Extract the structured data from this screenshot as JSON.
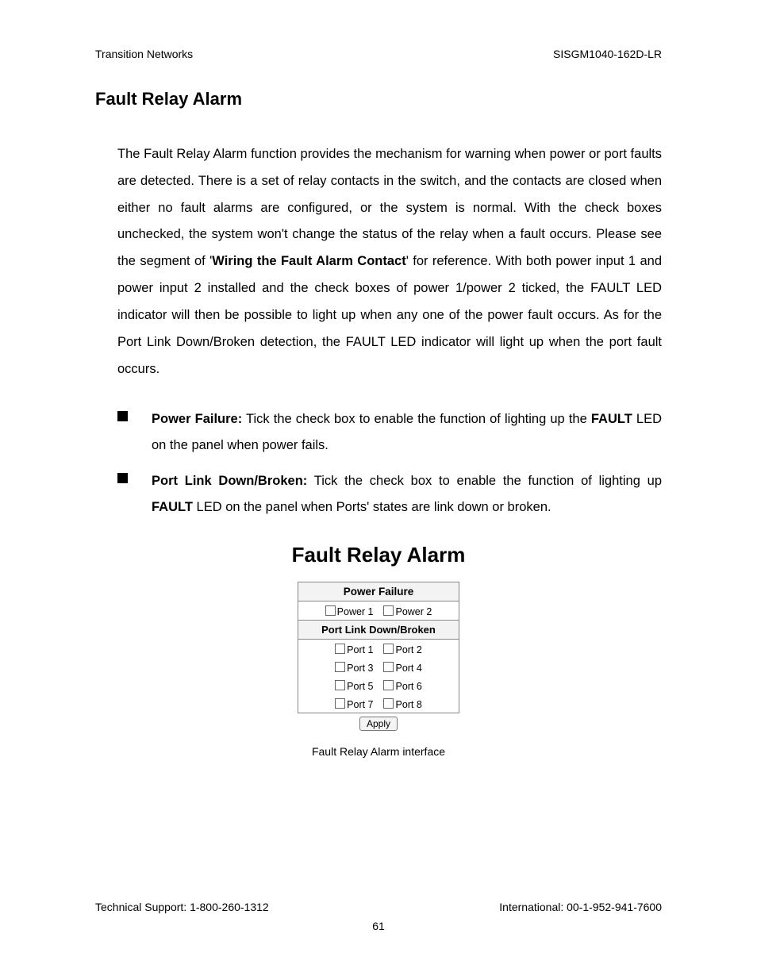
{
  "header": {
    "left": "Transition Networks",
    "right": "SISGM1040-162D-LR"
  },
  "section_title": "Fault Relay Alarm",
  "para": {
    "pre": "The Fault Relay Alarm function provides the mechanism for warning when power or port faults are detected. There is a set of relay contacts in the switch, and the contacts are closed when either no fault alarms are configured, or the system is normal. With the check boxes unchecked, the system won't change the status of the relay when a fault occurs. Please see the segment of '",
    "bold": "Wiring the Fault Alarm Contact",
    "post": "' for reference. With both power input 1 and power input 2 installed and the check boxes of power 1/power 2 ticked, the FAULT LED indicator will then be possible to light up when any one of the power fault occurs. As for the Port Link Down/Broken detection, the FAULT LED indicator will light up when the port fault occurs."
  },
  "bullets": {
    "power": {
      "lead": "Power Failure:",
      "pre": " Tick the check box to enable the function of lighting up the ",
      "bold": "FAULT",
      "post": " LED on the panel when power fails."
    },
    "port": {
      "lead": "Port Link Down/Broken:",
      "pre": " Tick the check box to enable the function of lighting up ",
      "bold": "FAULT",
      "post": " LED on the panel when Ports' states are link down or broken."
    }
  },
  "figure": {
    "title": "Fault Relay Alarm",
    "panel": {
      "header1": "Power Failure",
      "power1": "Power 1",
      "power2": "Power 2",
      "header2": "Port Link Down/Broken",
      "p1": "Port 1",
      "p2": "Port 2",
      "p3": "Port 3",
      "p4": "Port 4",
      "p5": "Port 5",
      "p6": "Port 6",
      "p7": "Port 7",
      "p8": "Port 8",
      "apply": "Apply"
    },
    "caption": "Fault Relay Alarm interface"
  },
  "footer": {
    "left": "Technical Support: 1-800-260-1312",
    "right": "International: 00-1-952-941-7600",
    "page": "61"
  }
}
